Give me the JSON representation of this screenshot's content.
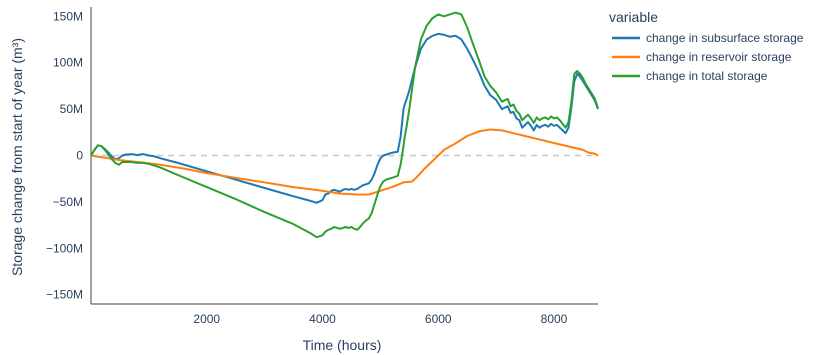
{
  "chart_data": {
    "type": "line",
    "title": "",
    "xlabel": "Time (hours)",
    "ylabel": "Storage change from start of year (m³)",
    "xlim": [
      0,
      8760
    ],
    "ylim": [
      -160000000,
      160000000
    ],
    "x_ticks": [
      2000,
      4000,
      6000,
      8000
    ],
    "x_tick_labels": [
      "2000",
      "4000",
      "6000",
      "8000"
    ],
    "y_ticks": [
      -150000000,
      -100000000,
      -50000000,
      0,
      50000000,
      100000000,
      150000000
    ],
    "y_tick_labels": [
      "−150M",
      "−100M",
      "−50M",
      "0",
      "50M",
      "100M",
      "150M"
    ],
    "zeroline": true,
    "grid": false,
    "legend": {
      "title": "variable",
      "placement": "right"
    },
    "series": [
      {
        "name": "change in subsurface storage",
        "color": "#1f77b4",
        "x": [
          0,
          60,
          120,
          180,
          240,
          300,
          360,
          420,
          480,
          540,
          600,
          700,
          800,
          900,
          1000,
          1100,
          1200,
          1500,
          2000,
          2500,
          3000,
          3500,
          3800,
          3900,
          4000,
          4050,
          4100,
          4150,
          4200,
          4300,
          4350,
          4400,
          4450,
          4500,
          4550,
          4600,
          4650,
          4700,
          4750,
          4800,
          4850,
          4900,
          4950,
          5000,
          5050,
          5100,
          5150,
          5200,
          5300,
          5350,
          5400,
          5420,
          5450,
          5500,
          5600,
          5700,
          5800,
          5900,
          6000,
          6100,
          6200,
          6300,
          6350,
          6400,
          6500,
          6600,
          6700,
          6800,
          6900,
          7000,
          7100,
          7200,
          7250,
          7300,
          7350,
          7400,
          7450,
          7500,
          7550,
          7600,
          7650,
          7700,
          7750,
          7800,
          7850,
          7900,
          7950,
          8000,
          8050,
          8100,
          8150,
          8200,
          8250,
          8300,
          8350,
          8400,
          8450,
          8500,
          8550,
          8600,
          8700,
          8760
        ],
        "y": [
          0,
          6000000,
          11000000,
          10000000,
          7000000,
          3000000,
          -1000000,
          -4000000,
          -3000000,
          0,
          1000000,
          1500000,
          500000,
          1500000,
          0,
          -1000000,
          -3000000,
          -8000000,
          -17000000,
          -26000000,
          -35000000,
          -44000000,
          -49000000,
          -51000000,
          -48000000,
          -42000000,
          -41000000,
          -38000000,
          -37000000,
          -39000000,
          -37000000,
          -36000000,
          -37000000,
          -36000000,
          -37000000,
          -36000000,
          -34000000,
          -32000000,
          -31000000,
          -30000000,
          -26000000,
          -19000000,
          -10000000,
          -3000000,
          0,
          1000000,
          2000000,
          3000000,
          4000000,
          20000000,
          50000000,
          55000000,
          60000000,
          70000000,
          95000000,
          115000000,
          125000000,
          129000000,
          131000000,
          130000000,
          128000000,
          129000000,
          127000000,
          125000000,
          115000000,
          103000000,
          90000000,
          75000000,
          65000000,
          60000000,
          50000000,
          53000000,
          46000000,
          47000000,
          40000000,
          38000000,
          30000000,
          33000000,
          36000000,
          32000000,
          27000000,
          33000000,
          30000000,
          32000000,
          33000000,
          31000000,
          34000000,
          32000000,
          33000000,
          30000000,
          27000000,
          24000000,
          30000000,
          52000000,
          80000000,
          88000000,
          85000000,
          80000000,
          75000000,
          70000000,
          60000000,
          50000000
        ]
      },
      {
        "name": "change in reservoir storage",
        "color": "#ff7f0e",
        "x": [
          0,
          300,
          500,
          800,
          1200,
          1600,
          2000,
          2500,
          3000,
          3500,
          4000,
          4300,
          4600,
          4800,
          5000,
          5200,
          5400,
          5550,
          5650,
          5750,
          5850,
          5950,
          6100,
          6300,
          6500,
          6700,
          6900,
          7100,
          7300,
          7500,
          7700,
          7900,
          8100,
          8300,
          8500,
          8600,
          8700,
          8760
        ],
        "y": [
          0,
          -3000000,
          -5000000,
          -7000000,
          -10000000,
          -14000000,
          -19000000,
          -24000000,
          -29000000,
          -34000000,
          -38000000,
          -41000000,
          -42000000,
          -42000000,
          -38000000,
          -34000000,
          -29000000,
          -28000000,
          -22000000,
          -15000000,
          -9000000,
          -3000000,
          6000000,
          13000000,
          21000000,
          26000000,
          28000000,
          27000000,
          24000000,
          21000000,
          18000000,
          15000000,
          12000000,
          9000000,
          6000000,
          3000000,
          2000000,
          0
        ]
      },
      {
        "name": "change in total storage",
        "color": "#2ca02c",
        "x": [
          0,
          60,
          120,
          180,
          240,
          300,
          360,
          420,
          480,
          540,
          600,
          700,
          800,
          900,
          1000,
          1100,
          1200,
          1500,
          2000,
          2500,
          3000,
          3500,
          3800,
          3900,
          4000,
          4050,
          4100,
          4150,
          4200,
          4300,
          4350,
          4400,
          4450,
          4500,
          4550,
          4600,
          4650,
          4700,
          4750,
          4800,
          4850,
          4900,
          4950,
          5000,
          5050,
          5100,
          5150,
          5200,
          5300,
          5350,
          5400,
          5420,
          5450,
          5500,
          5600,
          5700,
          5800,
          5900,
          6000,
          6100,
          6200,
          6300,
          6350,
          6400,
          6500,
          6600,
          6700,
          6800,
          6900,
          7000,
          7100,
          7200,
          7250,
          7300,
          7350,
          7400,
          7450,
          7500,
          7550,
          7600,
          7650,
          7700,
          7750,
          7800,
          7850,
          7900,
          7950,
          8000,
          8050,
          8100,
          8150,
          8200,
          8250,
          8300,
          8350,
          8400,
          8450,
          8500,
          8550,
          8600,
          8700,
          8760
        ],
        "y": [
          0,
          6000000,
          11000000,
          10000000,
          6000000,
          1000000,
          -4000000,
          -8000000,
          -10000000,
          -7000000,
          -7000000,
          -7000000,
          -8000000,
          -8000000,
          -9000000,
          -11000000,
          -13000000,
          -21000000,
          -34000000,
          -47000000,
          -61000000,
          -74000000,
          -84000000,
          -88000000,
          -86000000,
          -82000000,
          -80000000,
          -79000000,
          -77000000,
          -79000000,
          -78000000,
          -77000000,
          -78000000,
          -77000000,
          -79000000,
          -80000000,
          -77000000,
          -73000000,
          -70000000,
          -68000000,
          -62000000,
          -52000000,
          -42000000,
          -33000000,
          -28000000,
          -26000000,
          -25000000,
          -24000000,
          -22000000,
          -10000000,
          10000000,
          20000000,
          30000000,
          50000000,
          95000000,
          125000000,
          140000000,
          148000000,
          152000000,
          150000000,
          152000000,
          154000000,
          153000000,
          152000000,
          138000000,
          120000000,
          103000000,
          85000000,
          75000000,
          68000000,
          58000000,
          61000000,
          53000000,
          55000000,
          48000000,
          45000000,
          38000000,
          41000000,
          44000000,
          40000000,
          35000000,
          41000000,
          38000000,
          40000000,
          41000000,
          39000000,
          42000000,
          40000000,
          41000000,
          38000000,
          34000000,
          30000000,
          36000000,
          58000000,
          88000000,
          91000000,
          88000000,
          83000000,
          77000000,
          72000000,
          62000000,
          51000000
        ]
      }
    ]
  }
}
